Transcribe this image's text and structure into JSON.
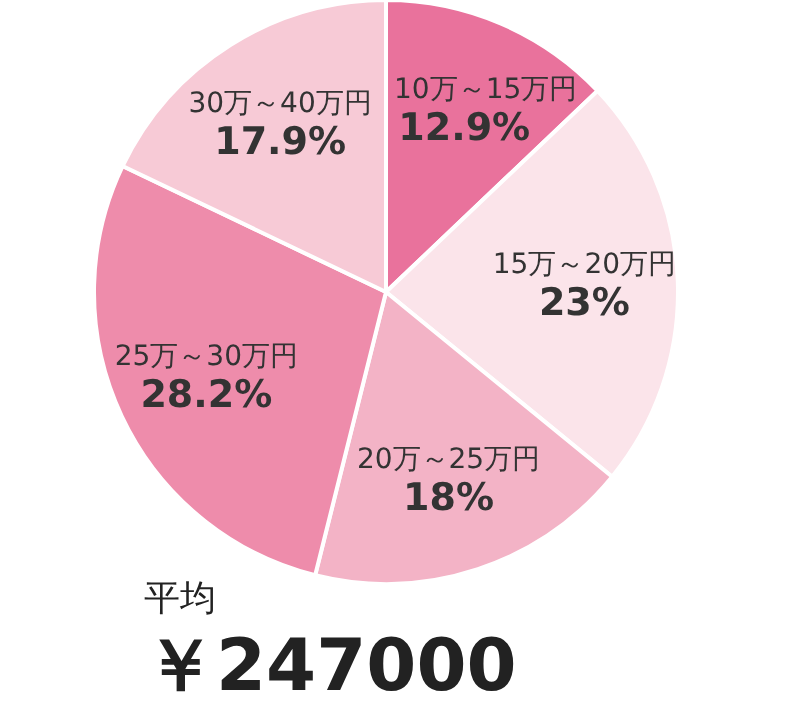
{
  "chart_data": {
    "type": "pie",
    "categories": [
      "10万～15万円",
      "15万～20万円",
      "20万～25万円",
      "25万～30万円",
      "30万～40万円"
    ],
    "values": [
      12.9,
      23,
      18,
      28.2,
      17.9
    ],
    "value_labels": [
      "12.9%",
      "23%",
      "18%",
      "28.2%",
      "17.9%"
    ],
    "colors": [
      "#e9729c",
      "#fbe4ea",
      "#f3b3c6",
      "#ee8cab",
      "#f7cad6"
    ],
    "annotations": [
      "平均",
      "￥247000"
    ]
  }
}
